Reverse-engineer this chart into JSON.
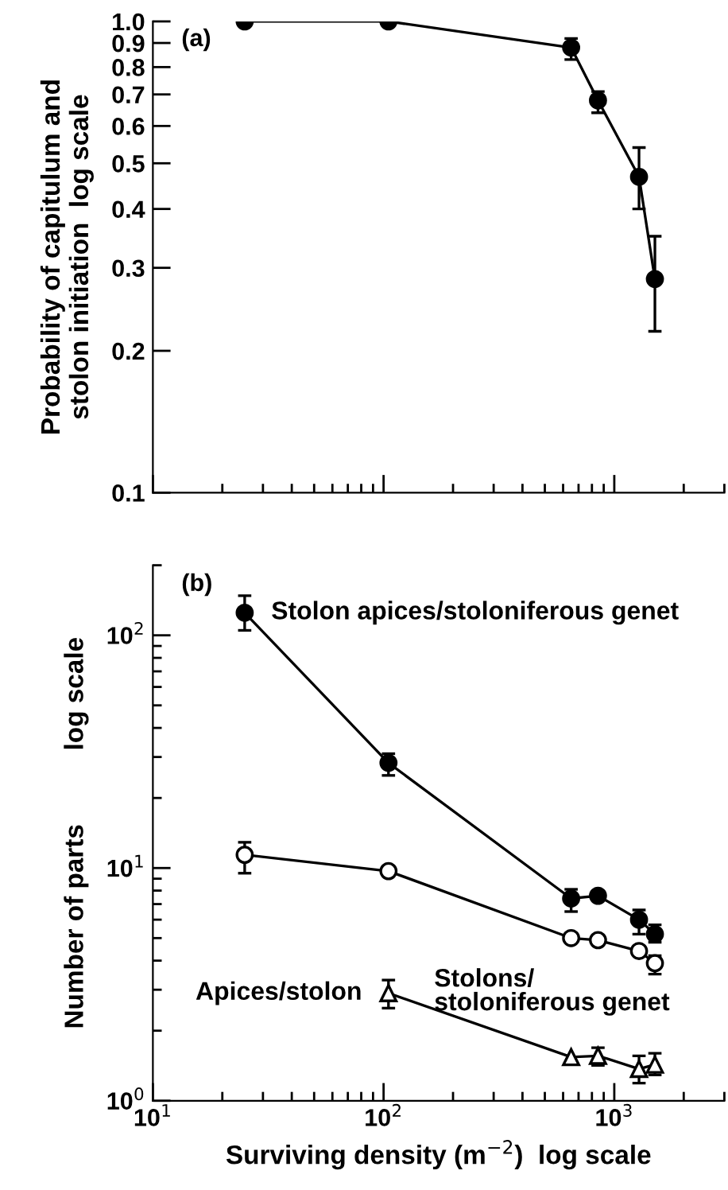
{
  "chart_data": [
    {
      "type": "line",
      "title": "(a)",
      "ylabel": "Probability of capitulum and\nstolon initiation  log scale",
      "log": "xy",
      "xlim": [
        10,
        3000
      ],
      "ylim": [
        0.1,
        1.0
      ],
      "xticks": [
        {
          "value": 10,
          "label": null
        },
        {
          "value": 100,
          "label": null
        },
        {
          "value": 1000,
          "label": null
        }
      ],
      "yticks": [
        0.1,
        0.2,
        0.3,
        0.4,
        0.5,
        0.6,
        0.7,
        0.8,
        0.9,
        {
          "value": 1.0,
          "label": "1.0"
        }
      ],
      "tick_labels": "y",
      "grid": false,
      "legend": false,
      "series": [
        {
          "marker": "circle",
          "color": "#000000",
          "x": [
            25,
            105,
            650,
            850,
            1280,
            1500
          ],
          "values": [
            1.0,
            1.0,
            0.88,
            0.68,
            0.468,
            0.284
          ],
          "errors": [
            null,
            null,
            [
              0.83,
              0.92
            ],
            [
              0.64,
              0.71
            ],
            [
              0.4,
              0.54
            ],
            [
              0.22,
              0.35
            ]
          ]
        }
      ]
    },
    {
      "type": "line",
      "title": "(b)",
      "xlabel": "Surviving density (m$^{−2}$)  log scale",
      "ylabel": "Number of parts          log scale",
      "log": "xy",
      "xlim": [
        10,
        3000
      ],
      "ylim": [
        1,
        200
      ],
      "xticks": [
        {
          "value": 10,
          "label": "10$^{1}$"
        },
        {
          "value": 100,
          "label": "10$^{2}$"
        },
        {
          "value": 1000,
          "label": "10$^{3}$"
        }
      ],
      "yticks": [
        {
          "value": 1,
          "label": "10$^{0}$"
        },
        {
          "value": 10,
          "label": "10$^{1}$"
        },
        {
          "value": 100,
          "label": "10$^{2}$"
        }
      ],
      "grid": false,
      "legend": false,
      "series": [
        {
          "marker": "circle",
          "color": "#000000",
          "x": [
            25,
            105,
            650,
            850,
            1280,
            1500
          ],
          "values": [
            125,
            28.3,
            7.4,
            7.6,
            6.0,
            5.2
          ],
          "errors": [
            [
              105,
              148
            ],
            [
              25,
              31
            ],
            [
              6.5,
              8.1
            ],
            null,
            [
              5.2,
              6.6
            ],
            [
              4.8,
              5.7
            ]
          ]
        },
        {
          "marker": "circle",
          "color": "#ffffff",
          "x": [
            25,
            105,
            650,
            850,
            1280,
            1500
          ],
          "values": [
            11.4,
            9.7,
            5.0,
            4.9,
            4.4,
            3.9
          ],
          "errors": [
            [
              9.5,
              12.9
            ],
            null,
            null,
            null,
            null,
            [
              3.5,
              4.2
            ]
          ]
        },
        {
          "marker": "triangle",
          "color": "#ffffff",
          "x": [
            105,
            650,
            850,
            1280,
            1500
          ],
          "values": [
            2.9,
            1.54,
            1.56,
            1.37,
            1.43
          ],
          "errors": [
            [
              2.5,
              3.3
            ],
            null,
            [
              1.42,
              1.69
            ],
            [
              1.19,
              1.56
            ],
            [
              1.29,
              1.6
            ]
          ]
        }
      ],
      "annotations": [
        "Stolon apices/stoloniferous genet",
        "Stolons/\nstoloniferous genet",
        "Apices/stolon"
      ]
    }
  ]
}
